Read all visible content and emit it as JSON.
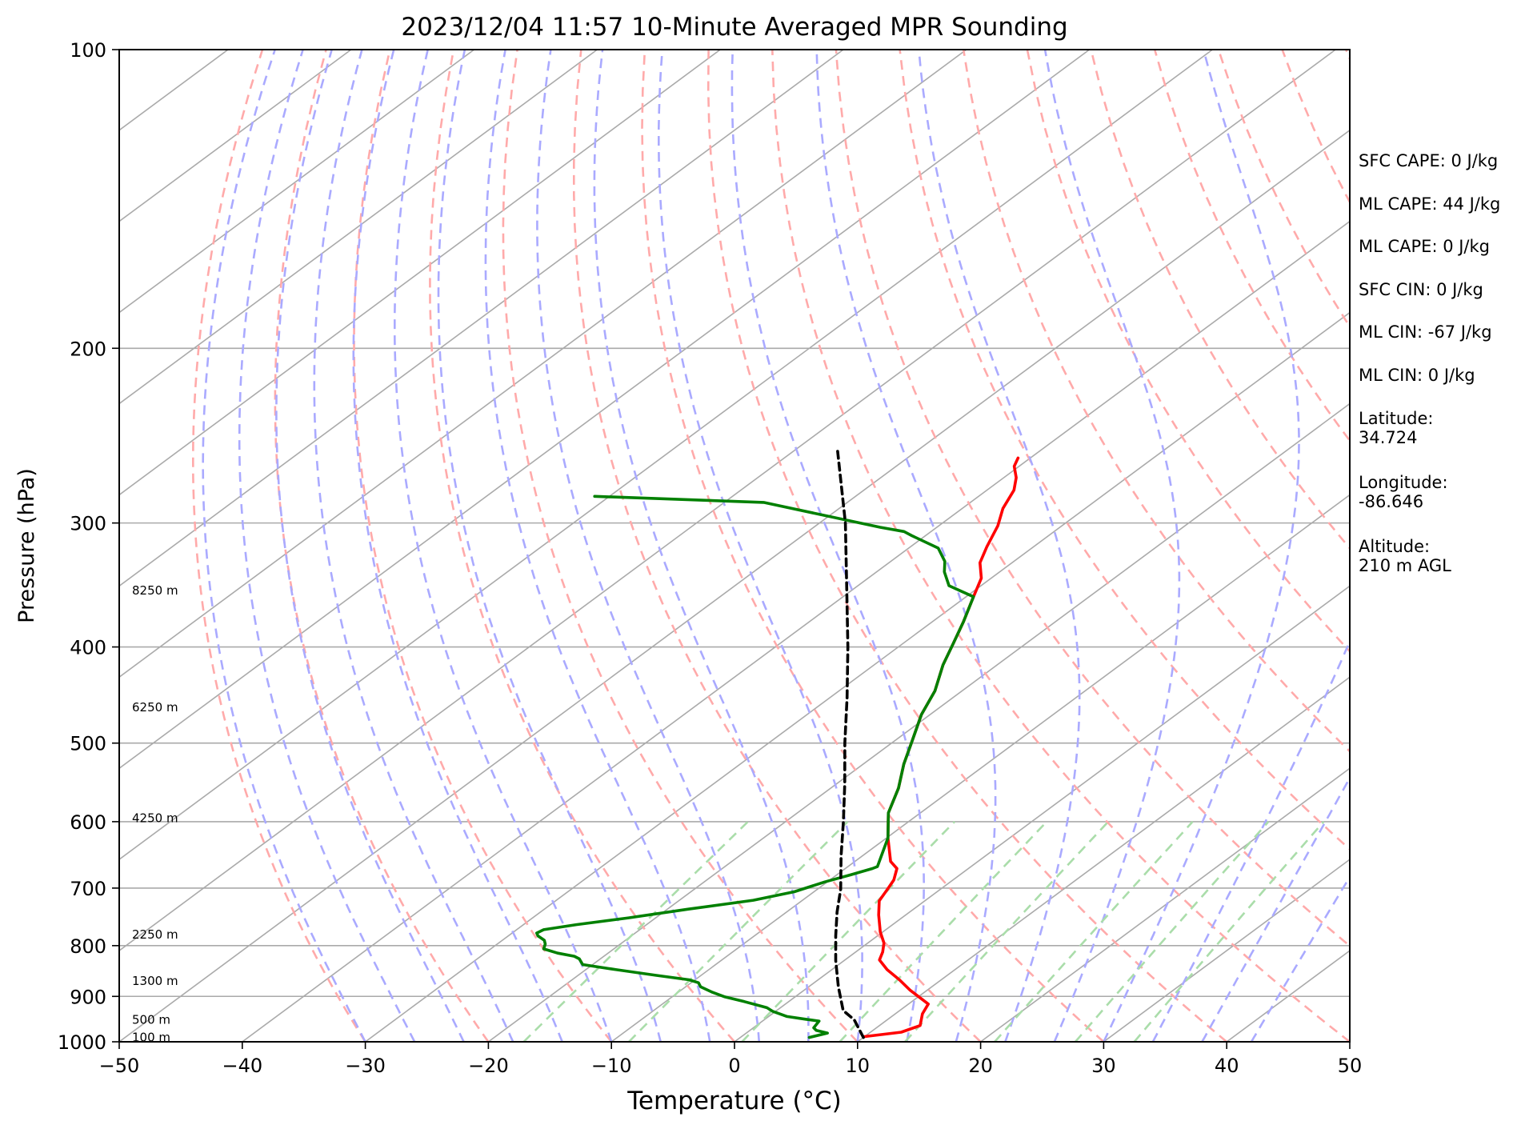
{
  "chart_data": {
    "type": "line",
    "title": "2023/12/04 11:57 10-Minute Averaged MPR Sounding",
    "xlabel": "Temperature (°C)",
    "ylabel": "Pressure (hPa)",
    "xlim": [
      -50,
      50
    ],
    "ylim": [
      1000,
      100
    ],
    "y_scale": "log",
    "skew": "skew-T",
    "x_ticks": [
      "−50",
      "−40",
      "−30",
      "−20",
      "−10",
      "0",
      "10",
      "20",
      "30",
      "40",
      "50"
    ],
    "x_tick_values": [
      -50,
      -40,
      -30,
      -20,
      -10,
      0,
      10,
      20,
      30,
      40,
      50
    ],
    "y_ticks": [
      "100",
      "200",
      "300",
      "400",
      "500",
      "600",
      "700",
      "800",
      "900",
      "1000"
    ],
    "y_tick_values": [
      100,
      200,
      300,
      400,
      500,
      600,
      700,
      800,
      900,
      1000
    ],
    "height_labels": [
      {
        "text": "100 m",
        "p": 990
      },
      {
        "text": "500 m",
        "p": 950
      },
      {
        "text": "1300 m",
        "p": 868
      },
      {
        "text": "2250 m",
        "p": 780
      },
      {
        "text": "4250 m",
        "p": 595
      },
      {
        "text": "6250 m",
        "p": 460
      },
      {
        "text": "8250 m",
        "p": 351
      }
    ],
    "series": [
      {
        "color": "#ff0000",
        "points": [
          [
            10,
            988
          ],
          [
            12.5,
            978
          ],
          [
            13.3,
            963
          ],
          [
            12.2,
            937
          ],
          [
            11.6,
            916
          ],
          [
            8.6,
            887
          ],
          [
            6.6,
            866
          ],
          [
            4.5,
            846
          ],
          [
            2.8,
            827
          ],
          [
            2.2,
            812
          ],
          [
            1.3,
            795
          ],
          [
            -0.2,
            775
          ],
          [
            -2.2,
            745
          ],
          [
            -3.7,
            721
          ],
          [
            -4.3,
            702
          ],
          [
            -4.8,
            687
          ],
          [
            -5.8,
            669
          ],
          [
            -7.1,
            658
          ],
          [
            -9.9,
            623
          ],
          [
            -12.6,
            588
          ],
          [
            -14.5,
            555
          ],
          [
            -16.7,
            525
          ],
          [
            -18.6,
            497
          ],
          [
            -20.7,
            468
          ],
          [
            -22.2,
            443
          ],
          [
            -24.4,
            417
          ],
          [
            -25.9,
            397
          ],
          [
            -27.5,
            377
          ],
          [
            -29.4,
            356
          ],
          [
            -30.8,
            341
          ],
          [
            -32.6,
            329
          ],
          [
            -33.8,
            317
          ],
          [
            -35.2,
            302
          ],
          [
            -36.7,
            290
          ],
          [
            -37.8,
            278
          ],
          [
            -39,
            270
          ],
          [
            -40.4,
            263
          ],
          [
            -41,
            258
          ]
        ]
      },
      {
        "color": "#008000",
        "points": [
          [
            5.6,
            990
          ],
          [
            6.6,
            980
          ],
          [
            5.4,
            974
          ],
          [
            4.9,
            968
          ],
          [
            4.6,
            953
          ],
          [
            3.3,
            949
          ],
          [
            1.5,
            943
          ],
          [
            -0.2,
            932
          ],
          [
            -1.1,
            924
          ],
          [
            -3.6,
            911
          ],
          [
            -5.7,
            901
          ],
          [
            -7.3,
            891
          ],
          [
            -8.8,
            880
          ],
          [
            -9.4,
            872
          ],
          [
            -10.5,
            866
          ],
          [
            -13.7,
            857
          ],
          [
            -17.5,
            846
          ],
          [
            -20.8,
            836
          ],
          [
            -21.7,
            825
          ],
          [
            -22.4,
            820
          ],
          [
            -24.1,
            814
          ],
          [
            -25.7,
            806
          ],
          [
            -26.1,
            797
          ],
          [
            -26.6,
            790
          ],
          [
            -27.6,
            782
          ],
          [
            -28,
            777
          ],
          [
            -27.8,
            771
          ],
          [
            -25.7,
            762
          ],
          [
            -22.2,
            750
          ],
          [
            -18.3,
            735
          ],
          [
            -14,
            720
          ],
          [
            -11.6,
            706
          ],
          [
            -10.9,
            698
          ],
          [
            -10.2,
            690
          ],
          [
            -8.9,
            679
          ],
          [
            -7.8,
            669
          ],
          [
            -7.6,
            666
          ],
          [
            -9.9,
            623
          ],
          [
            -12.6,
            588
          ],
          [
            -14.5,
            555
          ],
          [
            -16.7,
            525
          ],
          [
            -18.6,
            497
          ],
          [
            -20.7,
            468
          ],
          [
            -22.2,
            443
          ],
          [
            -24.4,
            417
          ],
          [
            -25.9,
            397
          ],
          [
            -27.5,
            377
          ],
          [
            -29.4,
            356
          ],
          [
            -32.6,
            347
          ],
          [
            -34.5,
            336
          ],
          [
            -35.6,
            328
          ],
          [
            -37.6,
            318
          ],
          [
            -41.1,
            309
          ],
          [
            -42.2,
            306
          ],
          [
            -44.6,
            303
          ],
          [
            -56.8,
            286
          ],
          [
            -71.2,
            282
          ]
        ]
      },
      {
        "color": "#000000",
        "dashed": true,
        "points": [
          [
            10,
            990
          ],
          [
            7.3,
            950
          ],
          [
            5.4,
            930
          ],
          [
            2.4,
            880
          ],
          [
            -0.7,
            828
          ],
          [
            -3.4,
            782
          ],
          [
            -5.9,
            740
          ],
          [
            -8.1,
            702
          ],
          [
            -11.7,
            650
          ],
          [
            -15.3,
            600
          ],
          [
            -19.3,
            550
          ],
          [
            -23.8,
            500
          ],
          [
            -28.6,
            450
          ],
          [
            -34.1,
            400
          ],
          [
            -40.5,
            350
          ],
          [
            -47.9,
            300
          ],
          [
            -56.4,
            254
          ]
        ]
      }
    ],
    "guide_lines": {
      "isotherms": {
        "color": "#aaaaaa",
        "style": "solid"
      },
      "dry_adiabats": {
        "color": "#ffaaaa",
        "style": "dashed"
      },
      "moist_adiabats": {
        "color": "#aaaaff",
        "style": "dashed"
      },
      "mixing_ratio_lines": {
        "color": "#aaddaa",
        "style": "dashed"
      }
    },
    "grid": "horizontal isobars",
    "legend": "none"
  },
  "annotations": [
    "SFC CAPE: 0 J/kg",
    "ML CAPE: 44 J/kg",
    "ML CAPE: 0 J/kg",
    "SFC CIN: 0 J/kg",
    "ML CIN: -67 J/kg",
    "ML CIN: 0 J/kg",
    "Latitude:\n34.724",
    "Longitude:\n-86.646",
    "Altitude:\n210 m AGL"
  ]
}
